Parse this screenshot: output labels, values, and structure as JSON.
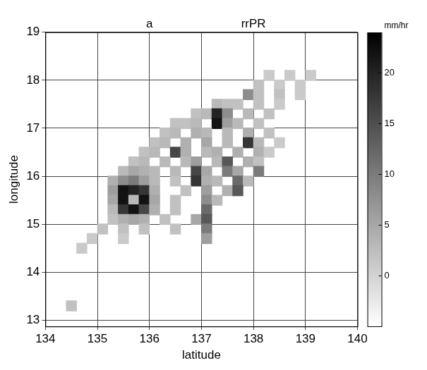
{
  "chart_data": {
    "type": "heatmap",
    "panel_label": "a",
    "title": "rrPR",
    "x_label": "latitude",
    "y_label": "longitude",
    "xlim": [
      134,
      140
    ],
    "xticks": [
      134,
      135,
      136,
      137,
      138,
      139,
      140
    ],
    "ylim": [
      12.87,
      19
    ],
    "yticks": [
      13,
      14,
      15,
      16,
      17,
      18,
      19
    ],
    "grid": true,
    "cells": [
      [
        138.3,
        18.1,
        1
      ],
      [
        138.7,
        18.1,
        1
      ],
      [
        139.1,
        18.1,
        1
      ],
      [
        138.1,
        17.9,
        2
      ],
      [
        138.5,
        17.9,
        1
      ],
      [
        138.9,
        17.9,
        1
      ],
      [
        137.9,
        17.7,
        8
      ],
      [
        138.1,
        17.7,
        2
      ],
      [
        138.5,
        17.7,
        2
      ],
      [
        138.9,
        17.7,
        1
      ],
      [
        137.3,
        17.5,
        3
      ],
      [
        137.5,
        17.5,
        2
      ],
      [
        137.7,
        17.5,
        2
      ],
      [
        138.1,
        17.5,
        2
      ],
      [
        138.5,
        17.5,
        1
      ],
      [
        136.9,
        17.3,
        2
      ],
      [
        137.1,
        17.3,
        3
      ],
      [
        137.3,
        17.3,
        20
      ],
      [
        137.5,
        17.3,
        8
      ],
      [
        137.9,
        17.3,
        3
      ],
      [
        138.3,
        17.3,
        2
      ],
      [
        136.5,
        17.1,
        2
      ],
      [
        136.7,
        17.1,
        2
      ],
      [
        136.9,
        17.1,
        3
      ],
      [
        137.3,
        17.1,
        22
      ],
      [
        137.5,
        17.1,
        6
      ],
      [
        137.7,
        17.1,
        3
      ],
      [
        138.1,
        17.1,
        2
      ],
      [
        136.3,
        16.9,
        2
      ],
      [
        136.5,
        16.9,
        3
      ],
      [
        136.9,
        16.9,
        4
      ],
      [
        137.1,
        16.9,
        3
      ],
      [
        137.5,
        16.9,
        3
      ],
      [
        137.9,
        16.9,
        4
      ],
      [
        138.3,
        16.9,
        2
      ],
      [
        136.1,
        16.7,
        2
      ],
      [
        136.3,
        16.7,
        3
      ],
      [
        136.7,
        16.7,
        4
      ],
      [
        137.1,
        16.7,
        5
      ],
      [
        137.5,
        16.7,
        3
      ],
      [
        137.9,
        16.7,
        18
      ],
      [
        138.1,
        16.7,
        3
      ],
      [
        138.5,
        16.7,
        1
      ],
      [
        135.9,
        16.5,
        2
      ],
      [
        136.1,
        16.5,
        3
      ],
      [
        136.5,
        16.5,
        16
      ],
      [
        136.7,
        16.5,
        4
      ],
      [
        137.1,
        16.5,
        3
      ],
      [
        137.3,
        16.5,
        4
      ],
      [
        137.7,
        16.5,
        4
      ],
      [
        138.1,
        16.5,
        4
      ],
      [
        138.3,
        16.5,
        1
      ],
      [
        135.7,
        16.3,
        2
      ],
      [
        135.9,
        16.3,
        3
      ],
      [
        136.3,
        16.3,
        3
      ],
      [
        136.7,
        16.3,
        3
      ],
      [
        136.9,
        16.3,
        6
      ],
      [
        137.3,
        16.3,
        3
      ],
      [
        137.5,
        16.3,
        14
      ],
      [
        137.9,
        16.3,
        4
      ],
      [
        138.1,
        16.3,
        2
      ],
      [
        135.5,
        16.1,
        3
      ],
      [
        135.7,
        16.1,
        5
      ],
      [
        135.9,
        16.1,
        4
      ],
      [
        136.1,
        16.1,
        3
      ],
      [
        136.5,
        16.1,
        3
      ],
      [
        136.9,
        16.1,
        16
      ],
      [
        137.1,
        16.1,
        5
      ],
      [
        137.5,
        16.1,
        10
      ],
      [
        137.7,
        16.1,
        5
      ],
      [
        138.1,
        16.1,
        10
      ],
      [
        135.3,
        15.9,
        4
      ],
      [
        135.5,
        15.9,
        8
      ],
      [
        135.7,
        15.9,
        10
      ],
      [
        135.9,
        15.9,
        6
      ],
      [
        136.1,
        15.9,
        3
      ],
      [
        136.5,
        15.9,
        2
      ],
      [
        136.9,
        15.9,
        18
      ],
      [
        137.1,
        15.9,
        4
      ],
      [
        137.3,
        15.9,
        3
      ],
      [
        137.7,
        15.9,
        12
      ],
      [
        137.9,
        15.9,
        3
      ],
      [
        135.3,
        15.7,
        6
      ],
      [
        135.5,
        15.7,
        22
      ],
      [
        135.7,
        15.7,
        20
      ],
      [
        135.9,
        15.7,
        18
      ],
      [
        136.1,
        15.7,
        4
      ],
      [
        136.7,
        15.7,
        2
      ],
      [
        137.1,
        15.7,
        6
      ],
      [
        137.5,
        15.7,
        4
      ],
      [
        137.7,
        15.7,
        14
      ],
      [
        135.3,
        15.5,
        5
      ],
      [
        135.5,
        15.5,
        22
      ],
      [
        135.7,
        15.5,
        3
      ],
      [
        135.9,
        15.5,
        22
      ],
      [
        136.1,
        15.5,
        5
      ],
      [
        136.5,
        15.5,
        2
      ],
      [
        137.1,
        15.5,
        8
      ],
      [
        137.3,
        15.5,
        3
      ],
      [
        135.3,
        15.3,
        3
      ],
      [
        135.5,
        15.3,
        18
      ],
      [
        135.7,
        15.3,
        22
      ],
      [
        135.9,
        15.3,
        16
      ],
      [
        136.1,
        15.3,
        4
      ],
      [
        136.5,
        15.3,
        2
      ],
      [
        137.1,
        15.3,
        12
      ],
      [
        135.3,
        15.1,
        2
      ],
      [
        135.5,
        15.1,
        4
      ],
      [
        135.7,
        15.1,
        5
      ],
      [
        135.9,
        15.1,
        4
      ],
      [
        136.3,
        15.1,
        2
      ],
      [
        136.9,
        15.1,
        5
      ],
      [
        137.1,
        15.1,
        14
      ],
      [
        135.1,
        14.9,
        2
      ],
      [
        135.5,
        14.9,
        2
      ],
      [
        135.9,
        14.9,
        2
      ],
      [
        136.5,
        14.9,
        2
      ],
      [
        137.1,
        14.9,
        10
      ],
      [
        134.9,
        14.7,
        1
      ],
      [
        135.5,
        14.7,
        1
      ],
      [
        137.1,
        14.7,
        6
      ],
      [
        134.7,
        14.5,
        1
      ],
      [
        134.5,
        13.3,
        2
      ]
    ],
    "colorbar": {
      "label": "mm/hr",
      "range": [
        -5,
        24
      ],
      "ticks": [
        0,
        5,
        10,
        15,
        20
      ]
    }
  }
}
